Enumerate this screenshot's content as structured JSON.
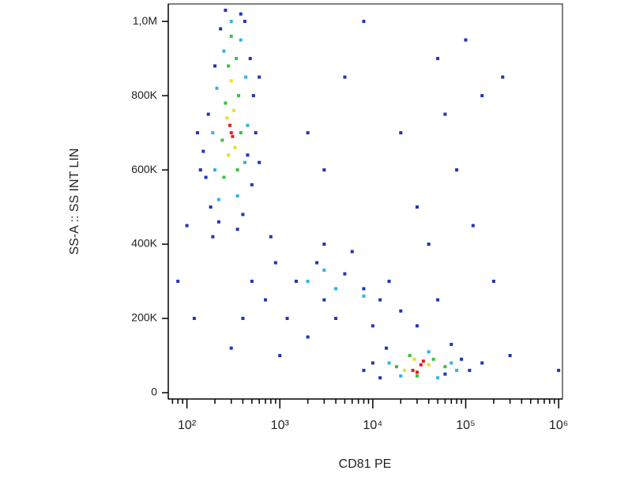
{
  "chart_data": {
    "type": "scatter",
    "x_label": "CD81 PE",
    "y_label": "SS-A :: SS INT LIN",
    "xscale": "log",
    "xlim": [
      63,
      1100000
    ],
    "ylim": [
      -17000,
      1047000
    ],
    "xticks": [
      {
        "value": 100,
        "label": "10²"
      },
      {
        "value": 1000,
        "label": "10³"
      },
      {
        "value": 10000,
        "label": "10⁴"
      },
      {
        "value": 100000,
        "label": "10⁵"
      },
      {
        "value": 1000000,
        "label": "10⁶"
      }
    ],
    "xminorticks": [
      70,
      80,
      90,
      200,
      300,
      400,
      500,
      600,
      700,
      800,
      900,
      2000,
      3000,
      4000,
      5000,
      6000,
      7000,
      8000,
      9000,
      20000,
      30000,
      40000,
      50000,
      60000,
      70000,
      80000,
      90000,
      200000,
      300000,
      400000,
      500000,
      600000,
      700000,
      800000,
      900000
    ],
    "yticks": [
      0,
      {
        "value": 200000,
        "label": "200K"
      },
      {
        "value": 400000,
        "label": "400K"
      },
      {
        "value": 600000,
        "label": "600K"
      },
      {
        "value": 800000,
        "label": "800K"
      },
      {
        "value": 1000000,
        "label": "1,0M"
      }
    ],
    "series": [
      {
        "color": "#2233b8",
        "x": [
          180,
          220,
          400,
          160,
          500,
          150,
          550,
          170,
          520,
          200,
          480,
          230,
          420,
          260,
          380,
          140,
          600,
          190,
          350,
          600,
          130,
          450,
          1500,
          2500,
          3000,
          5000,
          8000,
          12000,
          20000,
          1200,
          700,
          900,
          4000,
          6000,
          15000,
          30000,
          2000,
          500,
          400,
          300,
          1000,
          3000,
          10000,
          50000,
          800,
          10000,
          12000,
          60000,
          90000,
          110000,
          14000,
          70000,
          150000,
          8000,
          20000,
          50000,
          100000,
          30000,
          80000,
          150000,
          5000,
          2000,
          250000,
          40000,
          200000,
          3000,
          8000,
          60000,
          120000,
          300000,
          1000000,
          100,
          80,
          120
        ],
        "values": [
          500000,
          460000,
          480000,
          580000,
          560000,
          650000,
          700000,
          750000,
          800000,
          880000,
          900000,
          980000,
          1000000,
          1030000,
          1020000,
          600000,
          620000,
          420000,
          440000,
          850000,
          700000,
          640000,
          300000,
          350000,
          250000,
          320000,
          280000,
          250000,
          220000,
          200000,
          250000,
          350000,
          200000,
          380000,
          300000,
          180000,
          150000,
          300000,
          200000,
          120000,
          100000,
          400000,
          180000,
          250000,
          420000,
          80000,
          40000,
          50000,
          90000,
          60000,
          120000,
          130000,
          80000,
          60000,
          700000,
          900000,
          950000,
          500000,
          600000,
          800000,
          850000,
          700000,
          850000,
          400000,
          300000,
          600000,
          1000000,
          750000,
          450000,
          100000,
          60000,
          450000,
          300000,
          200000
        ]
      },
      {
        "color": "#30b4e0",
        "x": [
          220,
          350,
          200,
          420,
          190,
          450,
          210,
          430,
          250,
          380,
          300,
          2000,
          4000,
          8000,
          3000,
          15000,
          40000,
          70000,
          20000,
          80000,
          50000
        ],
        "values": [
          520000,
          530000,
          600000,
          620000,
          700000,
          720000,
          820000,
          850000,
          920000,
          950000,
          1000000,
          300000,
          280000,
          260000,
          330000,
          80000,
          110000,
          80000,
          45000,
          60000,
          40000
        ]
      },
      {
        "color": "#3cc03c",
        "x": [
          250,
          350,
          240,
          380,
          260,
          360,
          280,
          340,
          300,
          18000,
          25000,
          45000,
          60000,
          30000
        ],
        "values": [
          580000,
          600000,
          680000,
          700000,
          780000,
          800000,
          880000,
          900000,
          960000,
          70000,
          100000,
          90000,
          70000,
          45000
        ]
      },
      {
        "color": "#e6e020",
        "x": [
          280,
          330,
          270,
          320,
          300,
          22000,
          40000,
          28000
        ],
        "values": [
          640000,
          660000,
          740000,
          760000,
          840000,
          60000,
          75000,
          90000
        ]
      },
      {
        "color": "#e02020",
        "x": [
          300,
          290,
          310,
          27000,
          33000,
          30000,
          35000
        ],
        "values": [
          700000,
          720000,
          690000,
          60000,
          75000,
          55000,
          85000
        ]
      }
    ]
  }
}
